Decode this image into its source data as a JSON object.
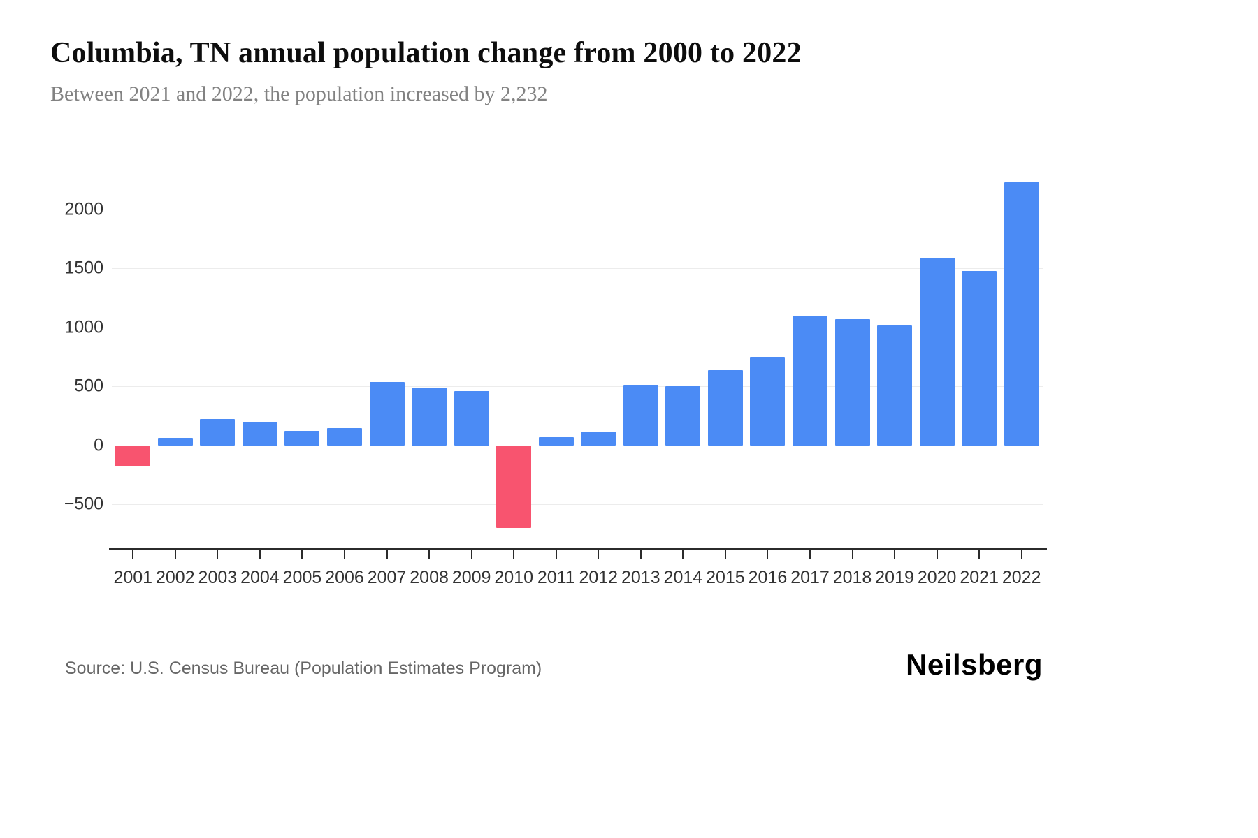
{
  "header": {
    "title": "Columbia, TN annual population change from 2000 to 2022",
    "subtitle": "Between 2021 and 2022, the population increased by 2,232"
  },
  "footer": {
    "source": "Source: U.S. Census Bureau (Population Estimates Program)",
    "logo": "Neilsberg"
  },
  "colors": {
    "positive_bar": "#4b8bf5",
    "negative_bar": "#f8546f",
    "gridline": "#ececec",
    "axis_line": "#2b2b2b",
    "tick_label": "#333333"
  },
  "chart_data": {
    "type": "bar",
    "title": "Columbia, TN annual population change from 2000 to 2022",
    "subtitle": "Between 2021 and 2022, the population increased by 2,232",
    "categories": [
      "2001",
      "2002",
      "2003",
      "2004",
      "2005",
      "2006",
      "2007",
      "2008",
      "2009",
      "2010",
      "2011",
      "2012",
      "2013",
      "2014",
      "2015",
      "2016",
      "2017",
      "2018",
      "2019",
      "2020",
      "2021",
      "2022"
    ],
    "values": [
      -180,
      65,
      225,
      200,
      125,
      145,
      540,
      490,
      460,
      -700,
      70,
      120,
      510,
      505,
      640,
      750,
      1100,
      1070,
      1020,
      1590,
      1480,
      2232
    ],
    "xlabel": "",
    "ylabel": "",
    "ylim": [
      -870,
      2414
    ],
    "yticks": [
      -500,
      0,
      500,
      1000,
      1500,
      2000
    ],
    "grid": "horizontal",
    "legend": "none",
    "bar_color_rule": "positive values blue, negative values red"
  }
}
